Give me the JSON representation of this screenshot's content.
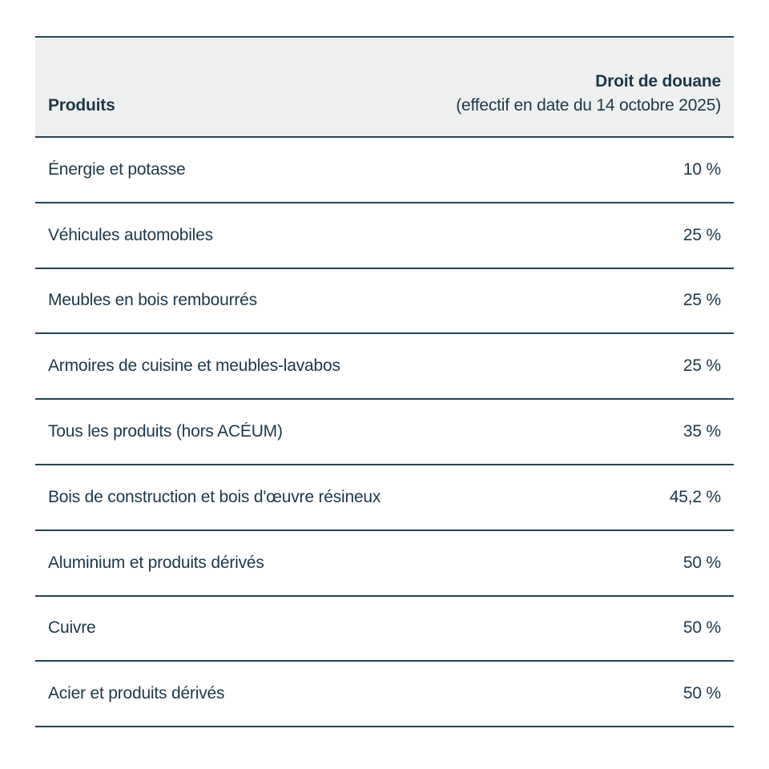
{
  "colors": {
    "text": "#1d3849",
    "border": "#234457",
    "header_background": "#eef0ef",
    "page_background": "#ffffff"
  },
  "chart_data": {
    "type": "table",
    "title": "",
    "columns": [
      {
        "label": "Produits"
      },
      {
        "label": "Droit de douane",
        "sublabel": "(effectif en date du 14 octobre 2025)"
      }
    ],
    "rows": [
      {
        "product": "Énergie et potasse",
        "tariff": "10 %",
        "tariff_value": 10
      },
      {
        "product": "Véhicules automobiles",
        "tariff": "25 %",
        "tariff_value": 25
      },
      {
        "product": "Meubles en bois rembourrés",
        "tariff": "25 %",
        "tariff_value": 25
      },
      {
        "product": "Armoires de cuisine et meubles-lavabos",
        "tariff": "25 %",
        "tariff_value": 25
      },
      {
        "product": "Tous les produits (hors ACÉUM)",
        "tariff": "35 %",
        "tariff_value": 35
      },
      {
        "product": "Bois de construction et bois d'œuvre résineux",
        "tariff": "45,2 %",
        "tariff_value": 45.2
      },
      {
        "product": "Aluminium et produits dérivés",
        "tariff": "50 %",
        "tariff_value": 50
      },
      {
        "product": "Cuivre",
        "tariff": "50 %",
        "tariff_value": 50
      },
      {
        "product": "Acier et produits dérivés",
        "tariff": "50 %",
        "tariff_value": 50
      }
    ]
  }
}
